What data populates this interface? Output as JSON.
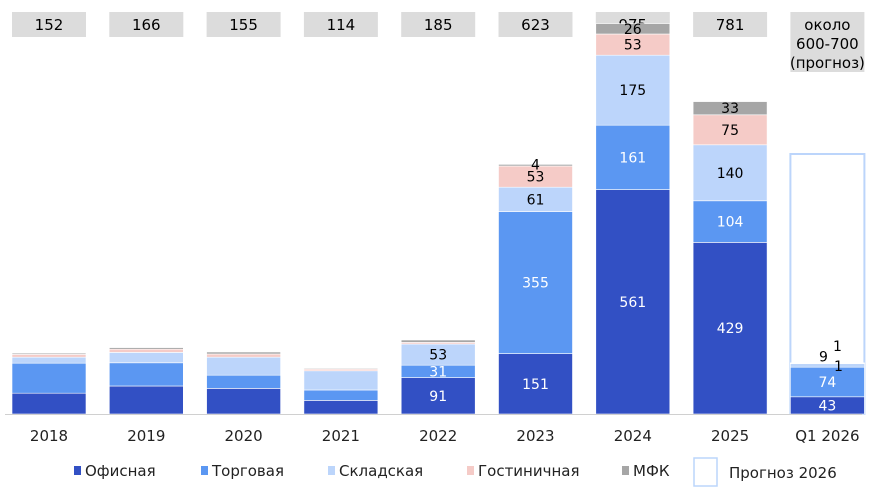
{
  "chart_data": {
    "type": "bar",
    "stacked": true,
    "categories": [
      "2018",
      "2019",
      "2020",
      "2021",
      "2022",
      "2023",
      "2024",
      "2025",
      "Q1 2026"
    ],
    "totals": [
      "152",
      "166",
      "155",
      "114",
      "185",
      "623",
      "975",
      "781",
      [
        "около",
        "600-700",
        "(прогноз)"
      ]
    ],
    "series": [
      {
        "name": "Офисная",
        "color": "#3250c4",
        "label_color": "#ffffff",
        "values": [
          52,
          70,
          64,
          34,
          91,
          151,
          561,
          429,
          43
        ],
        "labels": [
          "",
          "",
          "",
          "",
          "91",
          "151",
          "561",
          "429",
          "43"
        ]
      },
      {
        "name": "Торговая",
        "color": "#5b97f2",
        "label_color": "#ffffff",
        "values": [
          75,
          58,
          33,
          26,
          31,
          355,
          161,
          104,
          74
        ],
        "labels": [
          "",
          "",
          "",
          "",
          "31",
          "355",
          "161",
          "104",
          "74"
        ]
      },
      {
        "name": "Складская",
        "color": "#bcd5fb",
        "label_color": "#000000",
        "values": [
          15,
          26,
          45,
          48,
          53,
          61,
          175,
          140,
          9
        ],
        "labels": [
          "",
          "",
          "",
          "",
          "53",
          "61",
          "175",
          "140",
          "9"
        ]
      },
      {
        "name": "Гостиничная",
        "color": "#f5cbc7",
        "label_color": "#000000",
        "values": [
          7,
          8,
          8,
          4,
          4,
          53,
          53,
          75,
          1
        ],
        "labels": [
          "",
          "",
          "",
          "",
          "",
          "53",
          "53",
          "75",
          "1"
        ]
      },
      {
        "name": "МФК",
        "color": "#a6a6a6",
        "label_color": "#000000",
        "values": [
          3,
          4,
          5,
          2,
          6,
          4,
          26,
          33,
          1
        ],
        "labels": [
          "",
          "",
          "",
          "",
          "",
          "4",
          "26",
          "33",
          "1"
        ]
      }
    ],
    "forecast": {
      "category": "Q1 2026",
      "name": "Прогноз 2026",
      "value": 650,
      "border_color": "#bcd5fb"
    },
    "ymax": 1000,
    "legend_position": "bottom",
    "grid": false
  }
}
